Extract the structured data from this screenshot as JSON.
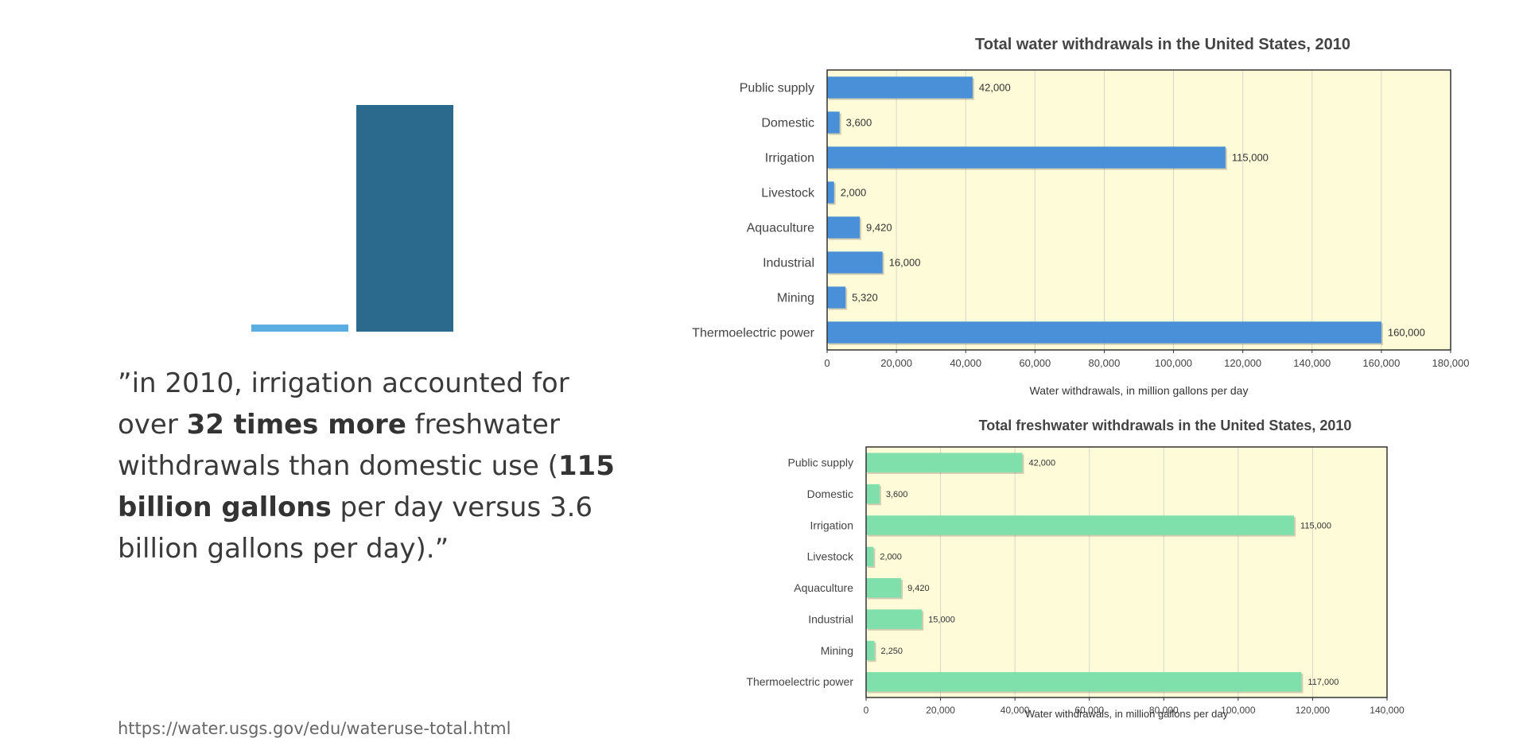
{
  "slide": {
    "quote": {
      "open": "”in 2010, irrigation accounted for over ",
      "bold1": "32 times more",
      "mid": " freshwater withdrawals than domestic use (",
      "bold2": "115 billion gallons",
      "end": " per day versus 3.6 billion gallons per day).”"
    },
    "source": "https://water.usgs.gov/edu/wateruse-total.html",
    "colors": {
      "mini_small": "#5aade0",
      "mini_large": "#2b6a8c",
      "chart_bg": "#fefbd8",
      "total_bar": "#4a90d9",
      "fresh_bar": "#7fe0ac",
      "grid": "#d8d8cc",
      "frame": "#333333"
    }
  },
  "chart_data": [
    {
      "type": "bar",
      "orientation": "horizontal",
      "title": "",
      "categories": [
        "",
        ""
      ],
      "values": [
        3.6,
        115
      ],
      "xlim": [
        0,
        115
      ]
    },
    {
      "type": "bar",
      "orientation": "horizontal",
      "title": "Total water withdrawals in the United States, 2010",
      "xlabel": "Water withdrawals, in million gallons per day",
      "categories": [
        "Public supply",
        "Domestic",
        "Irrigation",
        "Livestock",
        "Aquaculture",
        "Industrial",
        "Mining",
        "Thermoelectric power"
      ],
      "values": [
        42000,
        3600,
        115000,
        2000,
        9420,
        16000,
        5320,
        160000
      ],
      "data_labels": [
        "42,000",
        "3,600",
        "115,000",
        "2,000",
        "9,420",
        "16,000",
        "5,320",
        "160,000"
      ],
      "xlim": [
        0,
        180000
      ],
      "xticks": [
        "0",
        "20,000",
        "40,000",
        "60,000",
        "80,000",
        "100,000",
        "120,000",
        "140,000",
        "160,000",
        "180,000"
      ],
      "grid": true
    },
    {
      "type": "bar",
      "orientation": "horizontal",
      "title": "Total freshwater withdrawals in the United States, 2010",
      "xlabel": "Water withdrawals, in million gallons per day",
      "categories": [
        "Public supply",
        "Domestic",
        "Irrigation",
        "Livestock",
        "Aquaculture",
        "Industrial",
        "Mining",
        "Thermoelectric power"
      ],
      "values": [
        42000,
        3600,
        115000,
        2000,
        9420,
        15000,
        2250,
        117000
      ],
      "data_labels": [
        "42,000",
        "3,600",
        "115,000",
        "2,000",
        "9,420",
        "15,000",
        "2,250",
        "117,000"
      ],
      "xlim": [
        0,
        140000
      ],
      "xticks": [
        "0",
        "20,000",
        "40,000",
        "60,000",
        "80,000",
        "100,000",
        "120,000",
        "140,000"
      ],
      "grid": true
    }
  ]
}
